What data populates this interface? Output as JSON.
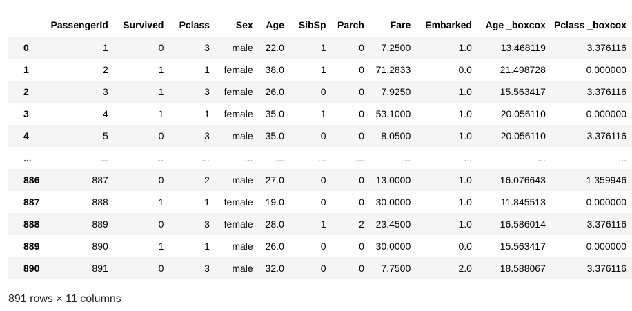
{
  "table": {
    "columns": [
      "",
      "PassengerId",
      "Survived",
      "Pclass",
      "Sex",
      "Age",
      "SibSp",
      "Parch",
      "Fare",
      "Embarked",
      "Age _boxcox",
      "Pclass _boxcox"
    ],
    "rows": [
      [
        "0",
        "1",
        "0",
        "3",
        "male",
        "22.0",
        "1",
        "0",
        "7.2500",
        "1.0",
        "13.468119",
        "3.376116"
      ],
      [
        "1",
        "2",
        "1",
        "1",
        "female",
        "38.0",
        "1",
        "0",
        "71.2833",
        "0.0",
        "21.498728",
        "0.000000"
      ],
      [
        "2",
        "3",
        "1",
        "3",
        "female",
        "26.0",
        "0",
        "0",
        "7.9250",
        "1.0",
        "15.563417",
        "3.376116"
      ],
      [
        "3",
        "4",
        "1",
        "1",
        "female",
        "35.0",
        "1",
        "0",
        "53.1000",
        "1.0",
        "20.056110",
        "0.000000"
      ],
      [
        "4",
        "5",
        "0",
        "3",
        "male",
        "35.0",
        "0",
        "0",
        "8.0500",
        "1.0",
        "20.056110",
        "3.376116"
      ],
      [
        "...",
        "...",
        "...",
        "...",
        "...",
        "...",
        "...",
        "...",
        "...",
        "...",
        "...",
        "..."
      ],
      [
        "886",
        "887",
        "0",
        "2",
        "male",
        "27.0",
        "0",
        "0",
        "13.0000",
        "1.0",
        "16.076643",
        "1.359946"
      ],
      [
        "887",
        "888",
        "1",
        "1",
        "female",
        "19.0",
        "0",
        "0",
        "30.0000",
        "1.0",
        "11.845513",
        "0.000000"
      ],
      [
        "888",
        "889",
        "0",
        "3",
        "female",
        "28.0",
        "1",
        "2",
        "23.4500",
        "1.0",
        "16.586014",
        "3.376116"
      ],
      [
        "889",
        "890",
        "1",
        "1",
        "male",
        "26.0",
        "0",
        "0",
        "30.0000",
        "0.0",
        "15.563417",
        "0.000000"
      ],
      [
        "890",
        "891",
        "0",
        "3",
        "male",
        "32.0",
        "0",
        "0",
        "7.7500",
        "2.0",
        "18.588067",
        "3.376116"
      ]
    ]
  },
  "footer": "891 rows × 11 columns"
}
